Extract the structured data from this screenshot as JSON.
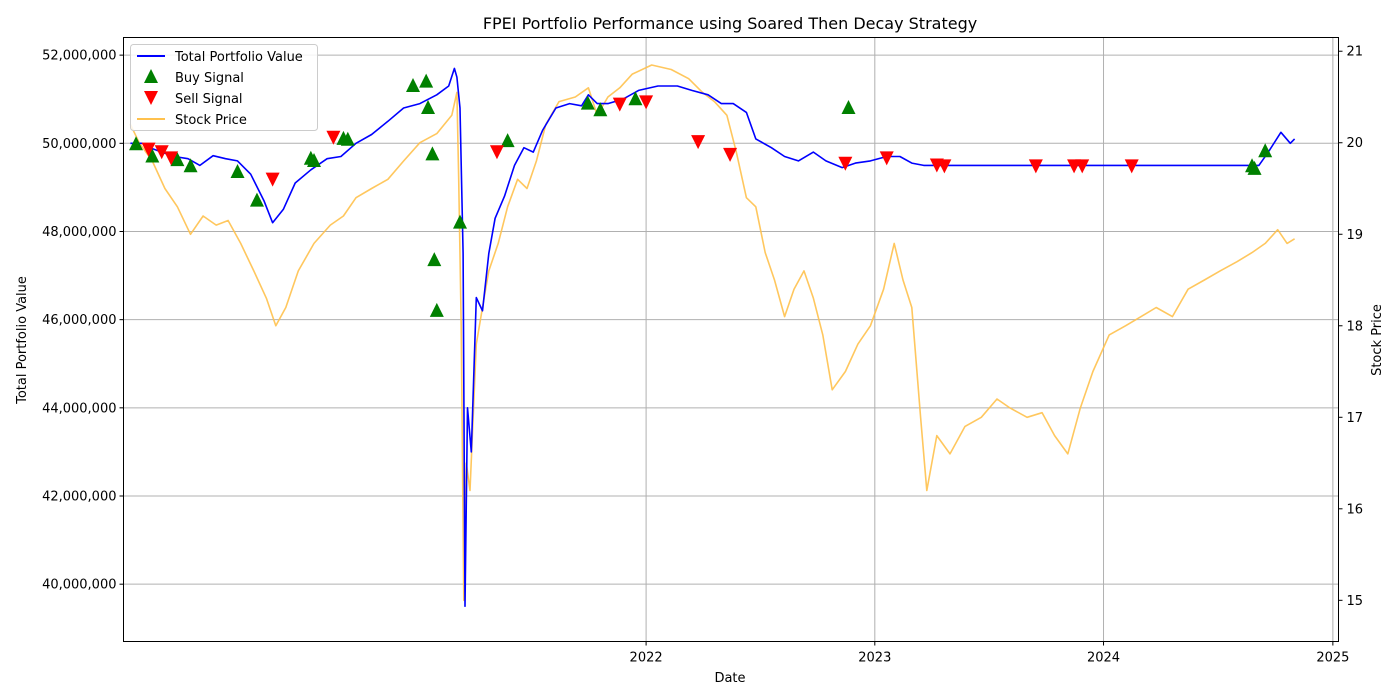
{
  "chart_data": {
    "type": "line",
    "title": "FPEI Portfolio Performance using Soared Then Decay Strategy",
    "xlabel": "Date",
    "ylabel": "Total Portfolio Value",
    "ylabel_right": "Stock Price",
    "xlim": [
      "2019-09-20",
      "2025-01-10"
    ],
    "ylim": [
      38700000,
      52400000
    ],
    "ylim_right": [
      14.55,
      21.15
    ],
    "x_ticks": [
      "2022-01-01",
      "2023-01-01",
      "2024-01-01",
      "2025-01-01"
    ],
    "x_tick_labels": [
      "2022",
      "2023",
      "2024",
      "2025"
    ],
    "y_ticks": [
      40000000,
      42000000,
      44000000,
      46000000,
      48000000,
      50000000,
      52000000
    ],
    "y_tick_labels": [
      "40,000,000",
      "42,000,000",
      "44,000,000",
      "46,000,000",
      "48,000,000",
      "50,000,000",
      "52,000,000"
    ],
    "y_right_ticks": [
      15,
      16,
      17,
      18,
      19,
      20,
      21
    ],
    "y_right_tick_labels": [
      "15",
      "16",
      "17",
      "18",
      "19",
      "20",
      "21"
    ],
    "grid": true,
    "legend_position": "top-left",
    "colors": {
      "portfolio": "#0000ff",
      "buy": "#008000",
      "sell": "#ff0000",
      "stock": "#ffc14d"
    },
    "legend": [
      {
        "label": "Total Portfolio Value",
        "kind": "line",
        "color": "#0000ff"
      },
      {
        "label": "Buy Signal",
        "kind": "triangle-up",
        "color": "#008000"
      },
      {
        "label": "Sell Signal",
        "kind": "triangle-down",
        "color": "#ff0000"
      },
      {
        "label": "Stock Price",
        "kind": "line",
        "color": "#ffc14d"
      }
    ],
    "series": [
      {
        "name": "Total Portfolio Value",
        "points": [
          [
            "2019-10-01",
            50000000
          ],
          [
            "2019-10-20",
            50000000
          ],
          [
            "2019-11-05",
            49880000
          ],
          [
            "2019-11-20",
            49800000
          ],
          [
            "2019-12-10",
            49700000
          ],
          [
            "2020-01-01",
            49650000
          ],
          [
            "2020-01-20",
            49500000
          ],
          [
            "2020-02-10",
            49720000
          ],
          [
            "2020-03-01",
            49650000
          ],
          [
            "2020-03-20",
            49600000
          ],
          [
            "2020-04-10",
            49300000
          ],
          [
            "2020-05-01",
            48700000
          ],
          [
            "2020-05-15",
            48200000
          ],
          [
            "2020-06-01",
            48500000
          ],
          [
            "2020-06-20",
            49100000
          ],
          [
            "2020-07-15",
            49400000
          ],
          [
            "2020-08-10",
            49650000
          ],
          [
            "2020-09-01",
            49700000
          ],
          [
            "2020-09-25",
            50000000
          ],
          [
            "2020-10-20",
            50200000
          ],
          [
            "2020-11-15",
            50500000
          ],
          [
            "2020-12-10",
            50800000
          ],
          [
            "2021-01-05",
            50900000
          ],
          [
            "2021-02-01",
            51100000
          ],
          [
            "2021-02-20",
            51300000
          ],
          [
            "2021-03-01",
            51700000
          ],
          [
            "2021-03-05",
            51500000
          ],
          [
            "2021-03-10",
            50800000
          ],
          [
            "2021-03-15",
            47500000
          ],
          [
            "2021-03-18",
            39500000
          ],
          [
            "2021-03-22",
            44000000
          ],
          [
            "2021-03-28",
            43000000
          ],
          [
            "2021-04-05",
            46500000
          ],
          [
            "2021-04-15",
            46200000
          ],
          [
            "2021-04-25",
            47500000
          ],
          [
            "2021-05-05",
            48300000
          ],
          [
            "2021-05-20",
            48800000
          ],
          [
            "2021-06-05",
            49500000
          ],
          [
            "2021-06-20",
            49900000
          ],
          [
            "2021-07-05",
            49800000
          ],
          [
            "2021-07-20",
            50300000
          ],
          [
            "2021-08-10",
            50800000
          ],
          [
            "2021-09-01",
            50900000
          ],
          [
            "2021-09-20",
            50850000
          ],
          [
            "2021-10-01",
            51100000
          ],
          [
            "2021-10-15",
            50900000
          ],
          [
            "2021-11-01",
            50900000
          ],
          [
            "2021-11-25",
            51000000
          ],
          [
            "2021-12-20",
            51200000
          ],
          [
            "2022-01-20",
            51300000
          ],
          [
            "2022-02-20",
            51300000
          ],
          [
            "2022-03-15",
            51200000
          ],
          [
            "2022-04-10",
            51100000
          ],
          [
            "2022-05-01",
            50900000
          ],
          [
            "2022-05-20",
            50900000
          ],
          [
            "2022-06-10",
            50700000
          ],
          [
            "2022-06-25",
            50100000
          ],
          [
            "2022-07-20",
            49900000
          ],
          [
            "2022-08-10",
            49700000
          ],
          [
            "2022-09-01",
            49600000
          ],
          [
            "2022-09-25",
            49800000
          ],
          [
            "2022-10-15",
            49600000
          ],
          [
            "2022-11-10",
            49450000
          ],
          [
            "2022-12-01",
            49550000
          ],
          [
            "2022-12-25",
            49600000
          ],
          [
            "2023-01-20",
            49700000
          ],
          [
            "2023-02-10",
            49700000
          ],
          [
            "2023-03-01",
            49550000
          ],
          [
            "2023-03-20",
            49500000
          ],
          [
            "2023-06-01",
            49500000
          ],
          [
            "2023-09-01",
            49500000
          ],
          [
            "2023-12-01",
            49500000
          ],
          [
            "2024-03-01",
            49500000
          ],
          [
            "2024-06-01",
            49500000
          ],
          [
            "2024-09-05",
            49500000
          ],
          [
            "2024-09-20",
            49800000
          ],
          [
            "2024-10-10",
            50250000
          ],
          [
            "2024-10-25",
            50000000
          ],
          [
            "2024-11-01",
            50100000
          ]
        ]
      },
      {
        "name": "Stock Price",
        "axis": "right",
        "points": [
          [
            "2019-10-01",
            20.2
          ],
          [
            "2019-10-15",
            20.0
          ],
          [
            "2019-11-05",
            19.8
          ],
          [
            "2019-11-25",
            19.5
          ],
          [
            "2019-12-15",
            19.3
          ],
          [
            "2020-01-05",
            19.0
          ],
          [
            "2020-01-25",
            19.2
          ],
          [
            "2020-02-15",
            19.1
          ],
          [
            "2020-03-05",
            19.15
          ],
          [
            "2020-03-25",
            18.9
          ],
          [
            "2020-04-15",
            18.6
          ],
          [
            "2020-05-05",
            18.3
          ],
          [
            "2020-05-20",
            18.0
          ],
          [
            "2020-06-05",
            18.2
          ],
          [
            "2020-06-25",
            18.6
          ],
          [
            "2020-07-20",
            18.9
          ],
          [
            "2020-08-15",
            19.1
          ],
          [
            "2020-09-05",
            19.2
          ],
          [
            "2020-09-25",
            19.4
          ],
          [
            "2020-10-20",
            19.5
          ],
          [
            "2020-11-15",
            19.6
          ],
          [
            "2020-12-10",
            19.8
          ],
          [
            "2021-01-05",
            20.0
          ],
          [
            "2021-02-01",
            20.1
          ],
          [
            "2021-02-25",
            20.3
          ],
          [
            "2021-03-05",
            20.55
          ],
          [
            "2021-03-08",
            19.6
          ],
          [
            "2021-03-12",
            18.0
          ],
          [
            "2021-03-16",
            15.0
          ],
          [
            "2021-03-20",
            16.5
          ],
          [
            "2021-03-26",
            16.2
          ],
          [
            "2021-04-05",
            17.8
          ],
          [
            "2021-04-15",
            18.2
          ],
          [
            "2021-04-25",
            18.6
          ],
          [
            "2021-05-10",
            18.9
          ],
          [
            "2021-05-25",
            19.3
          ],
          [
            "2021-06-10",
            19.6
          ],
          [
            "2021-06-25",
            19.5
          ],
          [
            "2021-07-10",
            19.8
          ],
          [
            "2021-07-25",
            20.2
          ],
          [
            "2021-08-15",
            20.45
          ],
          [
            "2021-09-10",
            20.5
          ],
          [
            "2021-10-01",
            20.6
          ],
          [
            "2021-10-15",
            20.3
          ],
          [
            "2021-11-01",
            20.5
          ],
          [
            "2021-11-20",
            20.6
          ],
          [
            "2021-12-10",
            20.75
          ],
          [
            "2022-01-10",
            20.85
          ],
          [
            "2022-02-10",
            20.8
          ],
          [
            "2022-03-10",
            20.7
          ],
          [
            "2022-04-01",
            20.55
          ],
          [
            "2022-04-20",
            20.45
          ],
          [
            "2022-05-10",
            20.3
          ],
          [
            "2022-05-25",
            19.9
          ],
          [
            "2022-06-10",
            19.4
          ],
          [
            "2022-06-25",
            19.3
          ],
          [
            "2022-07-10",
            18.8
          ],
          [
            "2022-07-25",
            18.5
          ],
          [
            "2022-08-10",
            18.1
          ],
          [
            "2022-08-25",
            18.4
          ],
          [
            "2022-09-10",
            18.6
          ],
          [
            "2022-09-25",
            18.3
          ],
          [
            "2022-10-10",
            17.9
          ],
          [
            "2022-10-25",
            17.3
          ],
          [
            "2022-11-15",
            17.5
          ],
          [
            "2022-12-05",
            17.8
          ],
          [
            "2022-12-25",
            18.0
          ],
          [
            "2023-01-15",
            18.4
          ],
          [
            "2023-02-01",
            18.9
          ],
          [
            "2023-02-15",
            18.5
          ],
          [
            "2023-03-01",
            18.2
          ],
          [
            "2023-03-15",
            17.0
          ],
          [
            "2023-03-25",
            16.2
          ],
          [
            "2023-04-10",
            16.8
          ],
          [
            "2023-05-01",
            16.6
          ],
          [
            "2023-05-25",
            16.9
          ],
          [
            "2023-06-20",
            17.0
          ],
          [
            "2023-07-15",
            17.2
          ],
          [
            "2023-08-05",
            17.1
          ],
          [
            "2023-09-01",
            17.0
          ],
          [
            "2023-09-25",
            17.05
          ],
          [
            "2023-10-15",
            16.8
          ],
          [
            "2023-11-05",
            16.6
          ],
          [
            "2023-11-25",
            17.1
          ],
          [
            "2023-12-15",
            17.5
          ],
          [
            "2024-01-10",
            17.9
          ],
          [
            "2024-02-05",
            18.0
          ],
          [
            "2024-03-01",
            18.1
          ],
          [
            "2024-03-25",
            18.2
          ],
          [
            "2024-04-20",
            18.1
          ],
          [
            "2024-05-15",
            18.4
          ],
          [
            "2024-06-10",
            18.5
          ],
          [
            "2024-07-05",
            18.6
          ],
          [
            "2024-08-01",
            18.7
          ],
          [
            "2024-08-25",
            18.8
          ],
          [
            "2024-09-15",
            18.9
          ],
          [
            "2024-10-05",
            19.05
          ],
          [
            "2024-10-20",
            18.9
          ],
          [
            "2024-11-01",
            18.95
          ]
        ]
      }
    ],
    "buy_signals": [
      [
        "2019-10-10",
        49980000
      ],
      [
        "2019-11-05",
        49700000
      ],
      [
        "2019-12-15",
        49620000
      ],
      [
        "2020-01-05",
        49480000
      ],
      [
        "2020-03-20",
        49350000
      ],
      [
        "2020-04-20",
        48700000
      ],
      [
        "2020-07-15",
        49650000
      ],
      [
        "2020-07-20",
        49600000
      ],
      [
        "2020-09-05",
        50100000
      ],
      [
        "2020-09-12",
        50080000
      ],
      [
        "2020-12-25",
        51300000
      ],
      [
        "2021-01-15",
        51400000
      ],
      [
        "2021-01-18",
        50800000
      ],
      [
        "2021-01-25",
        49750000
      ],
      [
        "2021-01-28",
        47350000
      ],
      [
        "2021-02-01",
        46200000
      ],
      [
        "2021-03-10",
        48200000
      ],
      [
        "2021-05-25",
        50050000
      ],
      [
        "2021-09-30",
        50900000
      ],
      [
        "2021-10-20",
        50750000
      ],
      [
        "2021-12-15",
        51000000
      ],
      [
        "2022-11-20",
        50800000
      ],
      [
        "2024-08-25",
        49480000
      ],
      [
        "2024-08-29",
        49420000
      ],
      [
        "2024-09-15",
        49820000
      ]
    ],
    "sell_signals": [
      [
        "2019-10-30",
        49880000
      ],
      [
        "2019-11-20",
        49820000
      ],
      [
        "2019-12-05",
        49680000
      ],
      [
        "2020-05-15",
        49200000
      ],
      [
        "2020-08-20",
        50150000
      ],
      [
        "2021-05-08",
        49820000
      ],
      [
        "2021-11-20",
        50900000
      ],
      [
        "2022-01-01",
        50950000
      ],
      [
        "2022-03-25",
        50050000
      ],
      [
        "2022-05-15",
        49760000
      ],
      [
        "2022-11-15",
        49560000
      ],
      [
        "2023-01-20",
        49680000
      ],
      [
        "2023-04-10",
        49520000
      ],
      [
        "2023-04-22",
        49500000
      ],
      [
        "2023-09-15",
        49500000
      ],
      [
        "2023-11-15",
        49500000
      ],
      [
        "2023-11-28",
        49500000
      ],
      [
        "2024-02-15",
        49500000
      ]
    ]
  }
}
